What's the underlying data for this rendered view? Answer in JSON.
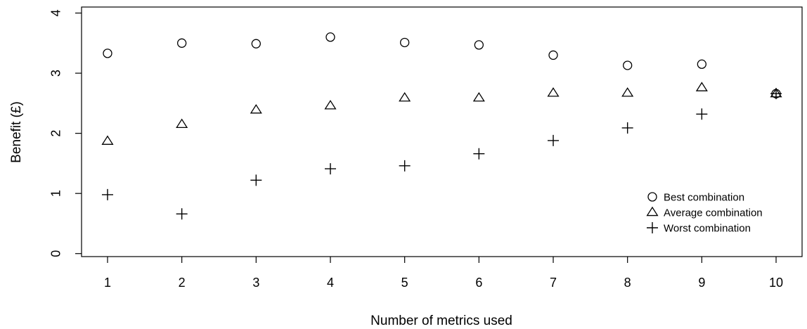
{
  "chart_data": {
    "type": "scatter",
    "title": "",
    "xlabel": "Number of metrics used",
    "ylabel": "Benefit (£)",
    "x": [
      1,
      2,
      3,
      4,
      5,
      6,
      7,
      8,
      9,
      10
    ],
    "xticks": [
      "1",
      "2",
      "3",
      "4",
      "5",
      "6",
      "7",
      "8",
      "9",
      "10"
    ],
    "yticks": [
      "0",
      "1",
      "2",
      "3",
      "4"
    ],
    "xlim": [
      0.65,
      10.35
    ],
    "ylim": [
      -0.05,
      4.1
    ],
    "grid": false,
    "legend_position": "bottom-right",
    "series": [
      {
        "name": "Best combination",
        "marker": "circle",
        "values": [
          3.33,
          3.5,
          3.49,
          3.6,
          3.51,
          3.47,
          3.3,
          3.13,
          3.15,
          2.66
        ]
      },
      {
        "name": "Average combination",
        "marker": "triangle",
        "values": [
          1.87,
          2.15,
          2.39,
          2.46,
          2.59,
          2.59,
          2.67,
          2.67,
          2.76,
          2.66
        ]
      },
      {
        "name": "Worst combination",
        "marker": "plus",
        "values": [
          0.98,
          0.66,
          1.22,
          1.41,
          1.46,
          1.66,
          1.88,
          2.09,
          2.32,
          2.66
        ]
      }
    ]
  }
}
